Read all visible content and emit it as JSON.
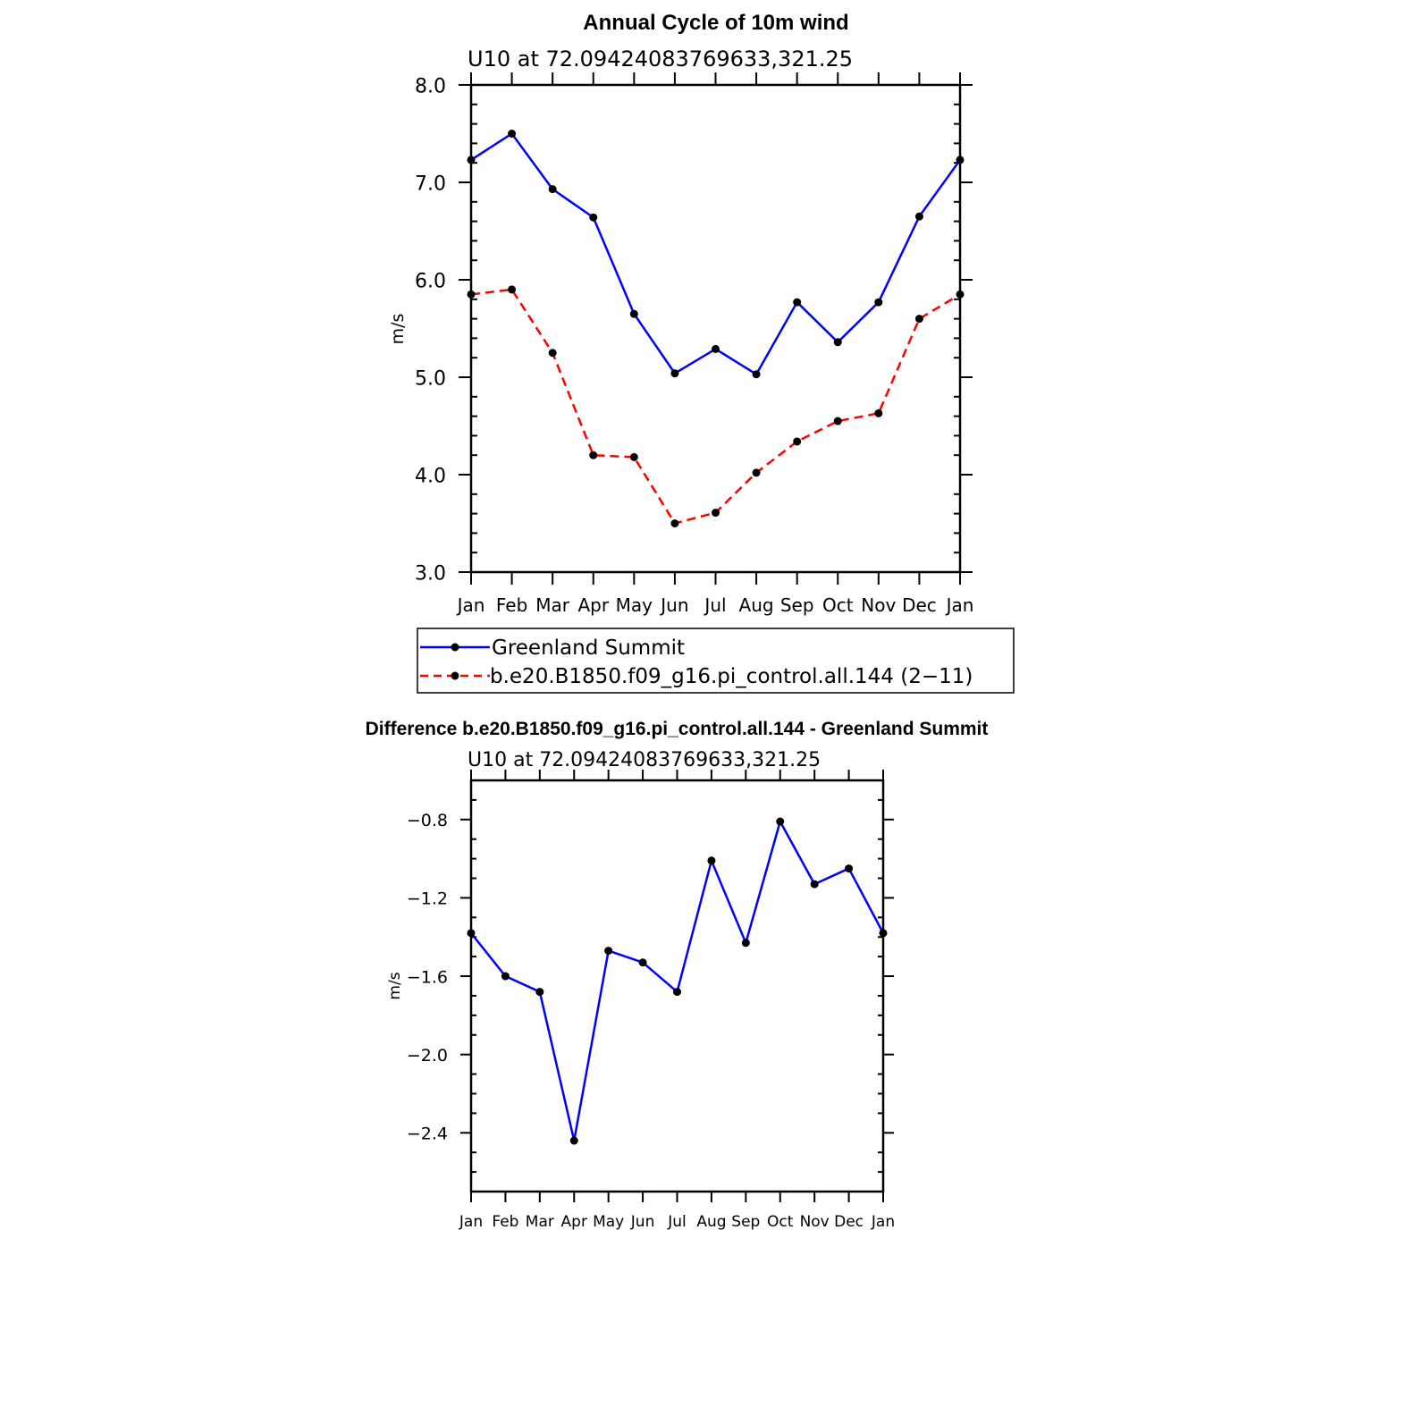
{
  "chart_data": [
    {
      "type": "line",
      "title": "Annual Cycle of 10m wind",
      "subtitle": "U10 at 72.09424083769633,321.25",
      "xlabel": "",
      "ylabel": "m/s",
      "categories": [
        "Jan",
        "Feb",
        "Mar",
        "Apr",
        "May",
        "Jun",
        "Jul",
        "Aug",
        "Sep",
        "Oct",
        "Nov",
        "Dec",
        "Jan"
      ],
      "ylim": [
        3.0,
        8.0
      ],
      "yticks": [
        "3.0",
        "4.0",
        "5.0",
        "6.0",
        "7.0",
        "8.0"
      ],
      "grid": false,
      "legend_position": "bottom",
      "series": [
        {
          "name": "Greenland Summit",
          "color": "#0000ff",
          "style": "solid",
          "values": [
            7.23,
            7.5,
            6.93,
            6.64,
            5.65,
            5.04,
            5.29,
            5.03,
            5.77,
            5.36,
            5.77,
            6.65,
            7.23
          ]
        },
        {
          "name": "b.e20.B1850.f09_g16.pi_control.all.144 (2−11)",
          "color": "#ff0000",
          "style": "dashed",
          "values": [
            5.85,
            5.9,
            5.25,
            4.2,
            4.18,
            3.5,
            3.61,
            4.02,
            4.34,
            4.55,
            4.63,
            5.6,
            5.85
          ]
        }
      ]
    },
    {
      "type": "line",
      "title": "Difference b.e20.B1850.f09_g16.pi_control.all.144 - Greenland Summit",
      "subtitle": "U10 at 72.09424083769633,321.25",
      "xlabel": "",
      "ylabel": "m/s",
      "categories": [
        "Jan",
        "Feb",
        "Mar",
        "Apr",
        "May",
        "Jun",
        "Jul",
        "Aug",
        "Sep",
        "Oct",
        "Nov",
        "Dec",
        "Jan"
      ],
      "ylim": [
        -2.7,
        -0.6
      ],
      "yticks": [
        "−2.4",
        "−2.0",
        "−1.6",
        "−1.2",
        "−0.8"
      ],
      "grid": false,
      "series": [
        {
          "color": "#0000ff",
          "style": "solid",
          "values": [
            -1.38,
            -1.6,
            -1.68,
            -2.44,
            -1.47,
            -1.53,
            -1.68,
            -1.01,
            -1.43,
            -0.81,
            -1.13,
            -1.05,
            -1.38
          ]
        }
      ]
    }
  ]
}
